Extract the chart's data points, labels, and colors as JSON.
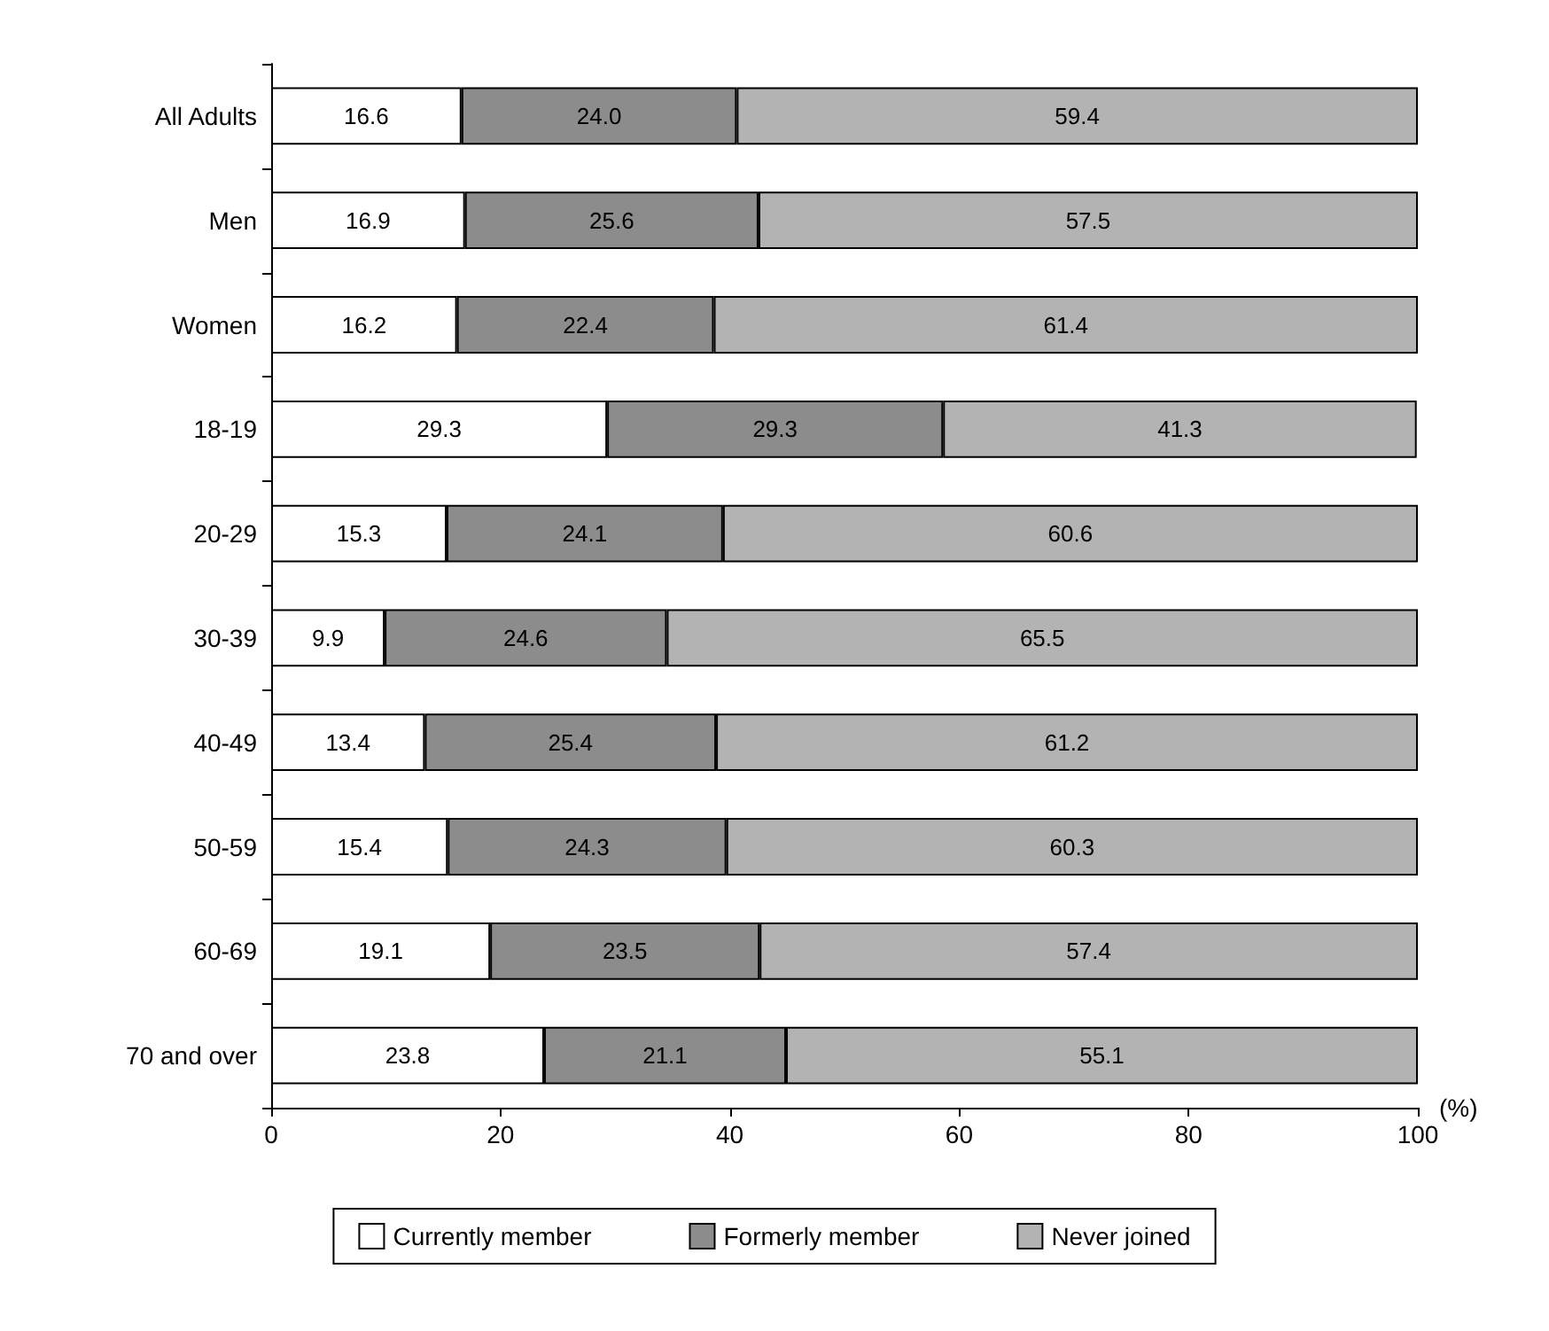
{
  "chart_data": {
    "type": "bar",
    "orientation": "horizontal",
    "stacked": true,
    "legend": "bottom",
    "grid": false,
    "xlabel": "(%)",
    "xlim": [
      0,
      100
    ],
    "xticks": [
      0,
      20,
      40,
      60,
      80,
      100
    ],
    "categories": [
      "All Adults",
      "Men",
      "Women",
      "18-19",
      "20-29",
      "30-39",
      "40-49",
      "50-59",
      "60-69",
      "70 and over"
    ],
    "series": [
      {
        "name": "Currently member",
        "color": "#ffffff",
        "values": [
          16.6,
          16.9,
          16.2,
          29.3,
          15.3,
          9.9,
          13.4,
          15.4,
          19.1,
          23.8
        ],
        "value_labels": [
          "16.6",
          "16.9",
          "16.2",
          "29.3",
          "15.3",
          "9.9",
          "13.4",
          "15.4",
          "19.1",
          "23.8"
        ]
      },
      {
        "name": "Formerly member",
        "color": "#8c8c8c",
        "values": [
          24.0,
          25.6,
          22.4,
          29.3,
          24.1,
          24.6,
          25.4,
          24.3,
          23.5,
          21.1
        ],
        "value_labels": [
          "24.0",
          "25.6",
          "22.4",
          "29.3",
          "24.1",
          "24.6",
          "25.4",
          "24.3",
          "23.5",
          "21.1"
        ]
      },
      {
        "name": "Never joined",
        "color": "#b3b3b3",
        "values": [
          59.4,
          57.5,
          61.4,
          41.3,
          60.6,
          65.5,
          61.2,
          60.3,
          57.4,
          55.1
        ],
        "value_labels": [
          "59.4",
          "57.5",
          "61.4",
          "41.3",
          "60.6",
          "65.5",
          "61.2",
          "60.3",
          "57.4",
          "55.1"
        ]
      }
    ]
  }
}
